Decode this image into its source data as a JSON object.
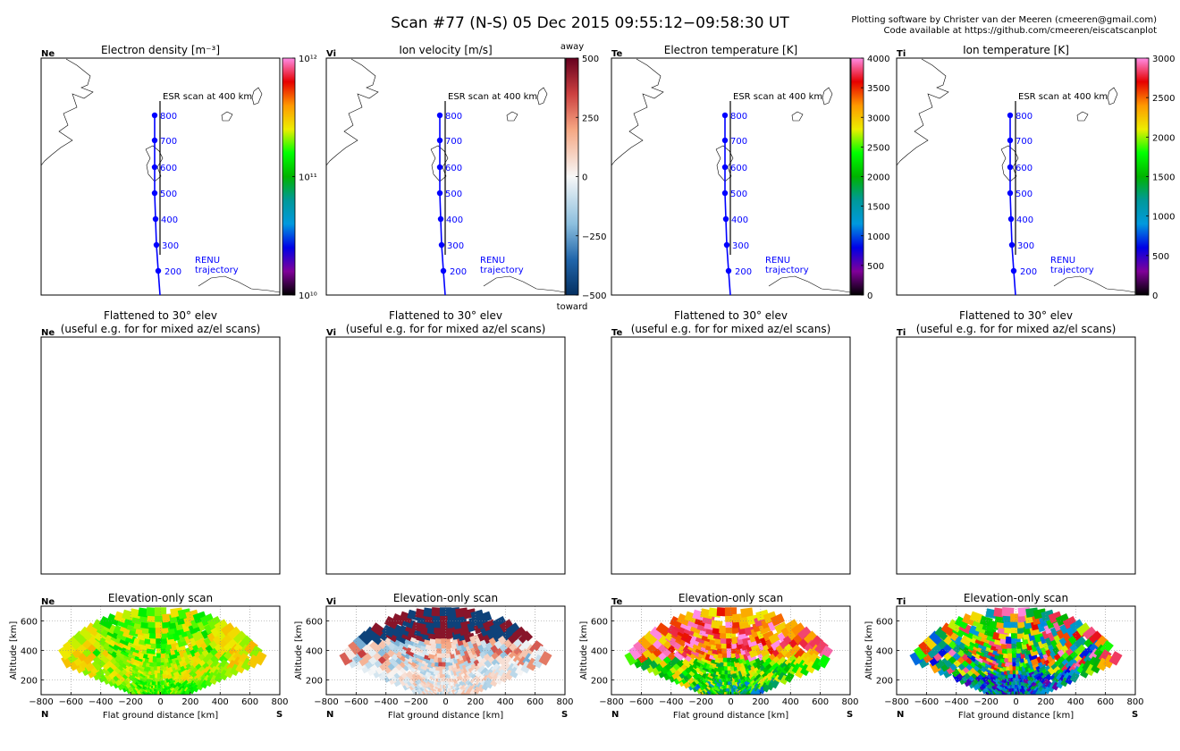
{
  "header": {
    "title": "Scan #77 (N-S)   05 Dec 2015 09:55:12−09:58:30 UT",
    "credit_line1": "Plotting software by Christer van der Meeren (cmeeren@gmail.com)",
    "credit_line2": "Code available at https://github.com/cmeeren/eiscatscanplot"
  },
  "map_labels": {
    "esr_scan": "ESR scan at 400 km",
    "renu_line1": "RENU",
    "renu_line2": "trajectory"
  },
  "colors": {
    "trajectory": "#0000ff",
    "marker": "#0000ff",
    "coast": "#000000"
  },
  "chart_data": [
    {
      "type": "map",
      "param": "Ne",
      "title": "Electron density [m⁻³]",
      "altitude_marks": [
        800,
        700,
        600,
        500,
        400,
        300,
        200
      ],
      "colorbar": {
        "scale": "log",
        "range": [
          10000000000.0,
          1000000000000.0
        ],
        "colormap": "nipy_spectral",
        "tick_labels": [
          "10¹²",
          "10¹¹",
          "10¹⁰"
        ]
      }
    },
    {
      "type": "map",
      "param": "Vi",
      "title": "Ion velocity [m/s]",
      "altitude_marks": [
        800,
        700,
        600,
        500,
        400,
        300,
        200
      ],
      "colorbar": {
        "scale": "linear",
        "range": [
          -500,
          500
        ],
        "colormap": "RdBu_r",
        "tick_labels": [
          "500",
          "250",
          "0",
          "−250",
          "−500"
        ],
        "top_label": "away",
        "bottom_label": "toward"
      }
    },
    {
      "type": "map",
      "param": "Te",
      "title": "Electron temperature [K]",
      "altitude_marks": [
        800,
        700,
        600,
        500,
        400,
        300,
        200
      ],
      "colorbar": {
        "scale": "linear",
        "range": [
          0,
          4000
        ],
        "colormap": "nipy_spectral",
        "tick_labels": [
          "4000",
          "3500",
          "3000",
          "2500",
          "2000",
          "1500",
          "1000",
          "500",
          "0"
        ]
      }
    },
    {
      "type": "map",
      "param": "Ti",
      "title": "Ion temperature [K]",
      "altitude_marks": [
        800,
        700,
        600,
        500,
        400,
        300,
        200
      ],
      "colorbar": {
        "scale": "linear",
        "range": [
          0,
          3000
        ],
        "colormap": "nipy_spectral",
        "tick_labels": [
          "3000",
          "2500",
          "2000",
          "1500",
          "1000",
          "500",
          "0"
        ]
      }
    },
    {
      "type": "empty",
      "param": "Ne",
      "title_line1": "Flattened to 30° elev",
      "title_line2": "(useful e.g. for for mixed az/el scans)"
    },
    {
      "type": "empty",
      "param": "Vi",
      "title_line1": "Flattened to 30° elev",
      "title_line2": "(useful e.g. for for mixed az/el scans)"
    },
    {
      "type": "empty",
      "param": "Te",
      "title_line1": "Flattened to 30° elev",
      "title_line2": "(useful e.g. for for mixed az/el scans)"
    },
    {
      "type": "empty",
      "param": "Ti",
      "title_line1": "Flattened to 30° elev",
      "title_line2": "(useful e.g. for for mixed az/el scans)"
    },
    {
      "type": "heatmap",
      "param": "Ne",
      "title": "Elevation-only scan",
      "xlabel": "Flat ground distance [km]",
      "ylabel": "Altitude [km]",
      "xlim": [
        -800,
        800
      ],
      "ylim": [
        100,
        700
      ],
      "xticks": [
        -800,
        -600,
        -400,
        -200,
        0,
        200,
        400,
        600,
        800
      ],
      "yticks": [
        200,
        400,
        600
      ],
      "left_label": "N",
      "right_label": "S",
      "grid": true,
      "colormap": "nipy_spectral",
      "description_range": [
        10000000000.0,
        1000000000000.0
      ]
    },
    {
      "type": "heatmap",
      "param": "Vi",
      "title": "Elevation-only scan",
      "xlabel": "Flat ground distance [km]",
      "ylabel": "Altitude [km]",
      "xlim": [
        -800,
        800
      ],
      "ylim": [
        100,
        700
      ],
      "xticks": [
        -800,
        -600,
        -400,
        -200,
        0,
        200,
        400,
        600,
        800
      ],
      "yticks": [
        200,
        400,
        600
      ],
      "left_label": "N",
      "right_label": "S",
      "grid": true,
      "colormap": "RdBu_r"
    },
    {
      "type": "heatmap",
      "param": "Te",
      "title": "Elevation-only scan",
      "xlabel": "Flat ground distance [km]",
      "ylabel": "Altitude [km]",
      "xlim": [
        -800,
        800
      ],
      "ylim": [
        100,
        700
      ],
      "xticks": [
        -800,
        -600,
        -400,
        -200,
        0,
        200,
        400,
        600,
        800
      ],
      "yticks": [
        200,
        400,
        600
      ],
      "left_label": "N",
      "right_label": "S",
      "grid": true,
      "colormap": "nipy_spectral"
    },
    {
      "type": "heatmap",
      "param": "Ti",
      "title": "Elevation-only scan",
      "xlabel": "Flat ground distance [km]",
      "ylabel": "Altitude [km]",
      "xlim": [
        -800,
        800
      ],
      "ylim": [
        100,
        700
      ],
      "xticks": [
        -800,
        -600,
        -400,
        -200,
        0,
        200,
        400,
        600,
        800
      ],
      "yticks": [
        200,
        400,
        600
      ],
      "left_label": "N",
      "right_label": "S",
      "grid": true,
      "colormap": "nipy_spectral"
    }
  ]
}
